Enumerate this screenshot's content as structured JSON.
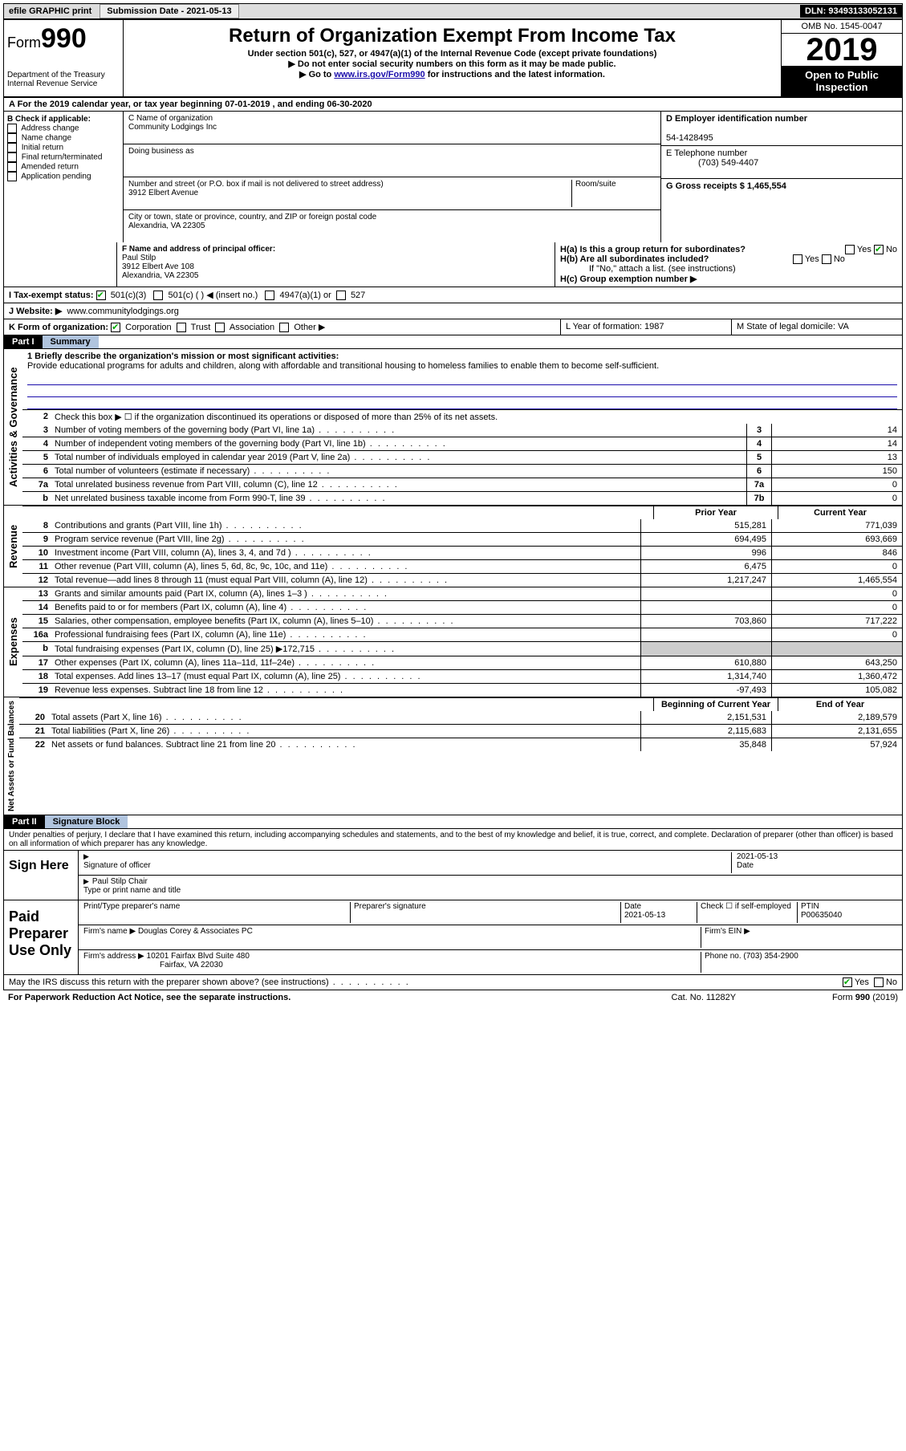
{
  "topbar": {
    "efile": "efile GRAPHIC print",
    "submission_label": "Submission Date - 2021-05-13",
    "dln": "DLN: 93493133052131"
  },
  "header": {
    "form_prefix": "Form",
    "form_num": "990",
    "dept": "Department of the Treasury\nInternal Revenue Service",
    "title": "Return of Organization Exempt From Income Tax",
    "sub1": "Under section 501(c), 527, or 4947(a)(1) of the Internal Revenue Code (except private foundations)",
    "sub2": "▶ Do not enter social security numbers on this form as it may be made public.",
    "sub3_pre": "▶ Go to ",
    "sub3_link": "www.irs.gov/Form990",
    "sub3_post": " for instructions and the latest information.",
    "omb": "OMB No. 1545-0047",
    "year": "2019",
    "open": "Open to Public Inspection"
  },
  "row_a": "A For the 2019 calendar year, or tax year beginning 07-01-2019   , and ending 06-30-2020",
  "col_b": {
    "label": "B Check if applicable:",
    "items": [
      "Address change",
      "Name change",
      "Initial return",
      "Final return/terminated",
      "Amended return",
      "Application pending"
    ]
  },
  "col_c": {
    "name_label": "C Name of organization",
    "name": "Community Lodgings Inc",
    "dba_label": "Doing business as",
    "dba": "",
    "street_label": "Number and street (or P.O. box if mail is not delivered to street address)",
    "room_label": "Room/suite",
    "street": "3912 Elbert Avenue",
    "city_label": "City or town, state or province, country, and ZIP or foreign postal code",
    "city": "Alexandria, VA  22305",
    "officer_label": "F Name and address of principal officer:",
    "officer": "Paul Stilp\n3912 Elbert Ave 108\nAlexandria, VA  22305"
  },
  "col_d": {
    "ein_label": "D Employer identification number",
    "ein": "54-1428495",
    "phone_label": "E Telephone number",
    "phone": "(703) 549-4407",
    "gross_label": "G Gross receipts $ 1,465,554",
    "ha": "H(a)  Is this a group return for subordinates?",
    "hb": "H(b)  Are all subordinates included?",
    "hb_note": "If \"No,\" attach a list. (see instructions)",
    "hc": "H(c)  Group exemption number ▶"
  },
  "tax_status": {
    "label": "I    Tax-exempt status:",
    "opts": [
      "501(c)(3)",
      "501(c) (  ) ◀ (insert no.)",
      "4947(a)(1) or",
      "527"
    ]
  },
  "website": {
    "label": "J   Website: ▶",
    "value": "www.communitylodgings.org"
  },
  "k_org": {
    "label": "K Form of organization:",
    "opts": [
      "Corporation",
      "Trust",
      "Association",
      "Other ▶"
    ],
    "l": "L Year of formation: 1987",
    "m": "M State of legal domicile: VA"
  },
  "part1": {
    "hdr": "Part I",
    "title": "Summary",
    "line1_label": "1  Briefly describe the organization's mission or most significant activities:",
    "mission": "Provide educational programs for adults and children, along with affordable and transitional housing to homeless families to enable them to become self-sufficient.",
    "line2": "Check this box ▶ ☐  if the organization discontinued its operations or disposed of more than 25% of its net assets.",
    "lines_top": [
      {
        "n": "3",
        "d": "Number of voting members of the governing body (Part VI, line 1a)",
        "l": "3",
        "v": "14"
      },
      {
        "n": "4",
        "d": "Number of independent voting members of the governing body (Part VI, line 1b)",
        "l": "4",
        "v": "14"
      },
      {
        "n": "5",
        "d": "Total number of individuals employed in calendar year 2019 (Part V, line 2a)",
        "l": "5",
        "v": "13"
      },
      {
        "n": "6",
        "d": "Total number of volunteers (estimate if necessary)",
        "l": "6",
        "v": "150"
      },
      {
        "n": "7a",
        "d": "Total unrelated business revenue from Part VIII, column (C), line 12",
        "l": "7a",
        "v": "0"
      },
      {
        "n": "b",
        "d": "Net unrelated business taxable income from Form 990-T, line 39",
        "l": "7b",
        "v": "0"
      }
    ],
    "prior_hdr": "Prior Year",
    "curr_hdr": "Current Year",
    "revenue": [
      {
        "n": "8",
        "d": "Contributions and grants (Part VIII, line 1h)",
        "p": "515,281",
        "c": "771,039"
      },
      {
        "n": "9",
        "d": "Program service revenue (Part VIII, line 2g)",
        "p": "694,495",
        "c": "693,669"
      },
      {
        "n": "10",
        "d": "Investment income (Part VIII, column (A), lines 3, 4, and 7d )",
        "p": "996",
        "c": "846"
      },
      {
        "n": "11",
        "d": "Other revenue (Part VIII, column (A), lines 5, 6d, 8c, 9c, 10c, and 11e)",
        "p": "6,475",
        "c": "0"
      },
      {
        "n": "12",
        "d": "Total revenue—add lines 8 through 11 (must equal Part VIII, column (A), line 12)",
        "p": "1,217,247",
        "c": "1,465,554"
      }
    ],
    "expenses": [
      {
        "n": "13",
        "d": "Grants and similar amounts paid (Part IX, column (A), lines 1–3 )",
        "p": "",
        "c": "0"
      },
      {
        "n": "14",
        "d": "Benefits paid to or for members (Part IX, column (A), line 4)",
        "p": "",
        "c": "0"
      },
      {
        "n": "15",
        "d": "Salaries, other compensation, employee benefits (Part IX, column (A), lines 5–10)",
        "p": "703,860",
        "c": "717,222"
      },
      {
        "n": "16a",
        "d": "Professional fundraising fees (Part IX, column (A), line 11e)",
        "p": "",
        "c": "0"
      },
      {
        "n": "b",
        "d": "Total fundraising expenses (Part IX, column (D), line 25) ▶172,715",
        "p": "grey",
        "c": "grey"
      },
      {
        "n": "17",
        "d": "Other expenses (Part IX, column (A), lines 11a–11d, 11f–24e)",
        "p": "610,880",
        "c": "643,250"
      },
      {
        "n": "18",
        "d": "Total expenses. Add lines 13–17 (must equal Part IX, column (A), line 25)",
        "p": "1,314,740",
        "c": "1,360,472"
      },
      {
        "n": "19",
        "d": "Revenue less expenses. Subtract line 18 from line 12",
        "p": "-97,493",
        "c": "105,082"
      }
    ],
    "net_hdr_a": "Beginning of Current Year",
    "net_hdr_b": "End of Year",
    "net": [
      {
        "n": "20",
        "d": "Total assets (Part X, line 16)",
        "p": "2,151,531",
        "c": "2,189,579"
      },
      {
        "n": "21",
        "d": "Total liabilities (Part X, line 26)",
        "p": "2,115,683",
        "c": "2,131,655"
      },
      {
        "n": "22",
        "d": "Net assets or fund balances. Subtract line 21 from line 20",
        "p": "35,848",
        "c": "57,924"
      }
    ]
  },
  "part2": {
    "hdr": "Part II",
    "title": "Signature Block",
    "decl": "Under penalties of perjury, I declare that I have examined this return, including accompanying schedules and statements, and to the best of my knowledge and belief, it is true, correct, and complete. Declaration of preparer (other than officer) is based on all information of which preparer has any knowledge.",
    "sign_here": "Sign Here",
    "sig_officer": "Signature of officer",
    "sig_date": "2021-05-13",
    "date_label": "Date",
    "officer_name": "Paul Stilp  Chair",
    "type_name": "Type or print name and title",
    "paid": "Paid Preparer Use Only",
    "prep_name_label": "Print/Type preparer's name",
    "prep_sig_label": "Preparer's signature",
    "prep_date_label": "Date",
    "prep_date": "2021-05-13",
    "check_if": "Check ☐ if self-employed",
    "ptin_label": "PTIN",
    "ptin": "P00635040",
    "firm_name_label": "Firm's name    ▶",
    "firm_name": "Douglas Corey & Associates PC",
    "firm_ein": "Firm's EIN ▶",
    "firm_addr_label": "Firm's address ▶",
    "firm_addr": "10201 Fairfax Blvd Suite 480",
    "firm_city": "Fairfax, VA  22030",
    "firm_phone": "Phone no. (703) 354-2900",
    "discuss": "May the IRS discuss this return with the preparer shown above? (see instructions)"
  },
  "footer": {
    "left": "For Paperwork Reduction Act Notice, see the separate instructions.",
    "mid": "Cat. No. 11282Y",
    "right": "Form 990 (2019)"
  },
  "tabs": {
    "activities": "Activities & Governance",
    "revenue": "Revenue",
    "expenses": "Expenses",
    "net": "Net Assets or Fund Balances"
  }
}
